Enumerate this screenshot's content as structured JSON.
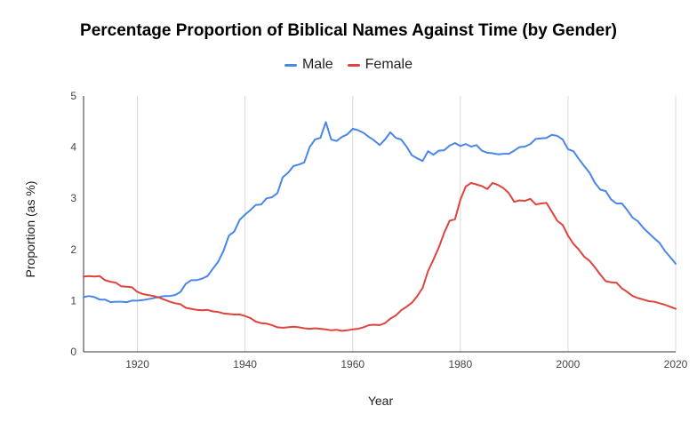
{
  "title": "Percentage Proportion of Biblical Names Against Time (by Gender)",
  "legend": [
    {
      "name": "Male",
      "color": "#4a86e8"
    },
    {
      "name": "Female",
      "color": "#e0433b"
    }
  ],
  "chart_data": {
    "type": "line",
    "title": "Percentage Proportion of Biblical Names Against Time (by Gender)",
    "xlabel": "Year",
    "ylabel": "Proportion (as %)",
    "xlim": [
      1910,
      2020
    ],
    "ylim": [
      0,
      5
    ],
    "x_ticks": [
      1920,
      1940,
      1960,
      1980,
      2000,
      2020
    ],
    "y_ticks": [
      0,
      1,
      2,
      3,
      4,
      5
    ],
    "grid": "vertical",
    "legend_position": "top",
    "x": [
      1910,
      1911,
      1912,
      1913,
      1914,
      1915,
      1916,
      1917,
      1918,
      1919,
      1920,
      1921,
      1922,
      1923,
      1924,
      1925,
      1926,
      1927,
      1928,
      1929,
      1930,
      1931,
      1932,
      1933,
      1934,
      1935,
      1936,
      1937,
      1938,
      1939,
      1940,
      1941,
      1942,
      1943,
      1944,
      1945,
      1946,
      1947,
      1948,
      1949,
      1950,
      1951,
      1952,
      1953,
      1954,
      1955,
      1956,
      1957,
      1958,
      1959,
      1960,
      1961,
      1962,
      1963,
      1964,
      1965,
      1966,
      1967,
      1968,
      1969,
      1970,
      1971,
      1972,
      1973,
      1974,
      1975,
      1976,
      1977,
      1978,
      1979,
      1980,
      1981,
      1982,
      1983,
      1984,
      1985,
      1986,
      1987,
      1988,
      1989,
      1990,
      1991,
      1992,
      1993,
      1994,
      1995,
      1996,
      1997,
      1998,
      1999,
      2000,
      2001,
      2002,
      2003,
      2004,
      2005,
      2006,
      2007,
      2008,
      2009,
      2010,
      2011,
      2012,
      2013,
      2014,
      2015,
      2016,
      2017,
      2018,
      2019,
      2020
    ],
    "series": [
      {
        "name": "Male",
        "color": "#4a86e8",
        "values": [
          1.07,
          1.09,
          1.07,
          1.02,
          1.02,
          0.97,
          0.98,
          0.98,
          0.97,
          1.0,
          1.0,
          1.01,
          1.03,
          1.05,
          1.07,
          1.09,
          1.09,
          1.11,
          1.17,
          1.33,
          1.4,
          1.4,
          1.43,
          1.48,
          1.62,
          1.76,
          1.97,
          2.27,
          2.35,
          2.58,
          2.68,
          2.77,
          2.87,
          2.88,
          3.0,
          3.02,
          3.1,
          3.41,
          3.5,
          3.63,
          3.66,
          3.7,
          4.0,
          4.15,
          4.18,
          4.49,
          4.15,
          4.12,
          4.2,
          4.25,
          4.36,
          4.33,
          4.28,
          4.2,
          4.13,
          4.04,
          4.15,
          4.29,
          4.18,
          4.15,
          4.01,
          3.84,
          3.78,
          3.73,
          3.92,
          3.85,
          3.93,
          3.94,
          4.03,
          4.08,
          4.02,
          4.06,
          4.01,
          4.04,
          3.93,
          3.89,
          3.88,
          3.86,
          3.87,
          3.87,
          3.93,
          4.0,
          4.01,
          4.06,
          4.16,
          4.17,
          4.18,
          4.24,
          4.22,
          4.15,
          3.96,
          3.92,
          3.77,
          3.63,
          3.5,
          3.3,
          3.17,
          3.14,
          2.98,
          2.9,
          2.9,
          2.77,
          2.62,
          2.55,
          2.42,
          2.32,
          2.22,
          2.13,
          1.97,
          1.85,
          1.72
        ]
      },
      {
        "name": "Female",
        "color": "#e0433b",
        "values": [
          1.47,
          1.48,
          1.47,
          1.48,
          1.4,
          1.37,
          1.35,
          1.28,
          1.27,
          1.26,
          1.17,
          1.13,
          1.11,
          1.09,
          1.06,
          1.02,
          0.98,
          0.95,
          0.93,
          0.86,
          0.84,
          0.82,
          0.81,
          0.82,
          0.79,
          0.78,
          0.75,
          0.74,
          0.73,
          0.73,
          0.7,
          0.66,
          0.59,
          0.56,
          0.55,
          0.52,
          0.48,
          0.47,
          0.48,
          0.49,
          0.48,
          0.46,
          0.45,
          0.46,
          0.45,
          0.44,
          0.42,
          0.43,
          0.41,
          0.42,
          0.44,
          0.45,
          0.48,
          0.52,
          0.53,
          0.52,
          0.56,
          0.65,
          0.71,
          0.81,
          0.88,
          0.96,
          1.09,
          1.25,
          1.58,
          1.8,
          2.04,
          2.33,
          2.56,
          2.59,
          2.97,
          3.23,
          3.3,
          3.27,
          3.24,
          3.18,
          3.3,
          3.26,
          3.2,
          3.1,
          2.93,
          2.96,
          2.95,
          2.99,
          2.88,
          2.9,
          2.91,
          2.74,
          2.56,
          2.48,
          2.27,
          2.11,
          2.0,
          1.86,
          1.78,
          1.65,
          1.51,
          1.38,
          1.36,
          1.35,
          1.24,
          1.17,
          1.09,
          1.05,
          1.02,
          0.99,
          0.98,
          0.95,
          0.92,
          0.88,
          0.84
        ]
      }
    ]
  }
}
